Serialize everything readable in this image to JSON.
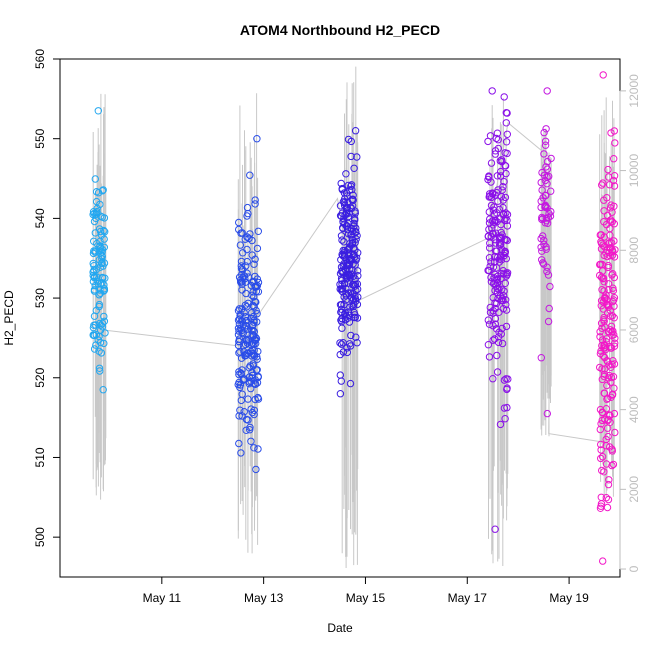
{
  "chart_data": {
    "type": "scatter",
    "title": "ATOM4 Northbound H2_PECD",
    "xlabel": "Date",
    "ylabel": "H2_PECD",
    "x_axis": {
      "kind": "date",
      "range": [
        "2023-05-09",
        "2023-05-20"
      ],
      "tick_values": [
        "2023-05-11",
        "2023-05-13",
        "2023-05-15",
        "2023-05-17",
        "2023-05-19"
      ],
      "tick_labels": [
        "May 11",
        "May 13",
        "May 15",
        "May 17",
        "May 19"
      ]
    },
    "y_axis_left": {
      "range": [
        495,
        560
      ],
      "ticks": [
        500,
        510,
        520,
        530,
        540,
        550,
        560
      ]
    },
    "y_axis_right": {
      "range": [
        -200,
        12800
      ],
      "ticks": [
        0,
        2000,
        4000,
        6000,
        8000,
        10000,
        12000
      ],
      "color": "#bdbdbd"
    },
    "grid": false,
    "point_style": "open circles",
    "point_colors": [
      "#22a7f0",
      "#2a4de8",
      "#3a1ee0",
      "#8a10e8",
      "#c418e0",
      "#f218c8"
    ],
    "secondary_line_color": "#c8c8c8",
    "clusters": [
      {
        "day": "2023-05-09",
        "x_from": 9.65,
        "x_to": 9.9,
        "center": 533,
        "sd": 7,
        "y_min": 518.5,
        "y_max": 553.5,
        "count": 110,
        "color": "#22a7f0"
      },
      {
        "day": "2023-05-12",
        "x_from": 12.5,
        "x_to": 12.9,
        "center": 526,
        "sd": 7,
        "y_min": 508.5,
        "y_max": 550,
        "count": 210,
        "color": "#2a4de8"
      },
      {
        "day": "2023-05-14",
        "x_from": 14.5,
        "x_to": 14.85,
        "center": 534,
        "sd": 6.5,
        "y_min": 518,
        "y_max": 551,
        "count": 220,
        "color": "#3a1ee0"
      },
      {
        "day": "2023-05-17",
        "x_from": 17.4,
        "x_to": 17.8,
        "center": 535,
        "sd": 9,
        "y_min": 501,
        "y_max": 556,
        "count": 200,
        "color": "#8a10e8"
      },
      {
        "day": "2023-05-18",
        "x_from": 18.45,
        "x_to": 18.65,
        "center": 540,
        "sd": 6,
        "y_min": 515.5,
        "y_max": 556,
        "count": 60,
        "color": "#c418e0"
      },
      {
        "day": "2023-05-19",
        "x_from": 19.6,
        "x_to": 19.9,
        "center": 525,
        "sd": 11,
        "y_min": 497,
        "y_max": 558,
        "count": 200,
        "color": "#f218c8"
      }
    ],
    "secondary_segments": [
      {
        "x_from": 9.65,
        "x_to": 9.9,
        "y_min": 1500,
        "y_max": 12000
      },
      {
        "x_from": 12.5,
        "x_to": 12.9,
        "y_min": 0,
        "y_max": 12000
      },
      {
        "x_from": 14.5,
        "x_to": 14.85,
        "y_min": 0,
        "y_max": 12800
      },
      {
        "x_from": 17.4,
        "x_to": 17.8,
        "y_min": 0,
        "y_max": 12000
      },
      {
        "x_from": 18.45,
        "x_to": 18.65,
        "y_min": 3300,
        "y_max": 11200
      },
      {
        "x_from": 19.6,
        "x_to": 19.9,
        "y_min": 1600,
        "y_max": 12000
      }
    ],
    "secondary_trend": {
      "x": [
        9.85,
        12.5,
        12.8,
        14.45,
        14.8,
        17.4,
        17.8,
        18.65,
        18.6,
        19.6
      ],
      "y": [
        6000,
        5600,
        6200,
        9300,
        6700,
        8300,
        11200,
        10300,
        3400,
        3200
      ]
    }
  }
}
